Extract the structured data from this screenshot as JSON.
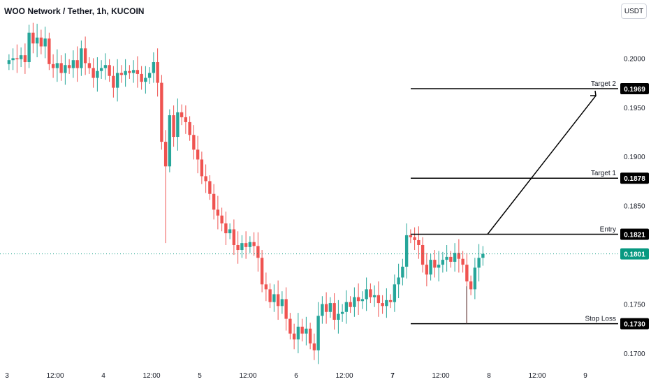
{
  "header": {
    "title": "WOO Network / Tether, 1h, KUCOIN",
    "currency": "USDT"
  },
  "colors": {
    "up": "#26a69a",
    "down": "#ef5350",
    "line": "#000000",
    "badge": "#000000",
    "last": "#089981"
  },
  "chart_data": {
    "type": "candlestick",
    "y_ticks": [
      "0.2000",
      "0.1950",
      "0.1900",
      "0.1850",
      "0.1750",
      "0.1700"
    ],
    "y_range": [
      0.169,
      0.2045
    ],
    "x_ticks": [
      "3",
      "12:00",
      "4",
      "12:00",
      "5",
      "12:00",
      "6",
      "12:00",
      "7",
      "12:00",
      "8",
      "12:00",
      "9"
    ],
    "bold_x_ticks": [
      "7"
    ],
    "closes": [
      0.1998,
      0.2,
      0.1999,
      0.2003,
      0.1996,
      0.2026,
      0.2015,
      0.2021,
      0.2012,
      0.202,
      0.1994,
      0.199,
      0.1995,
      0.1985,
      0.1993,
      0.199,
      0.1998,
      0.199,
      0.201,
      0.1995,
      0.199,
      0.198,
      0.1987,
      0.199,
      0.1993,
      0.1982,
      0.197,
      0.1985,
      0.1983,
      0.1987,
      0.1985,
      0.1988,
      0.1984,
      0.1976,
      0.198,
      0.1985,
      0.1996,
      0.1975,
      0.1915,
      0.189,
      0.1942,
      0.192,
      0.1945,
      0.194,
      0.1935,
      0.1922,
      0.1907,
      0.1897,
      0.188,
      0.1875,
      0.1862,
      0.1846,
      0.184,
      0.1832,
      0.1822,
      0.1826,
      0.181,
      0.1805,
      0.1812,
      0.1808,
      0.1813,
      0.1809,
      0.1797,
      0.177,
      0.1765,
      0.1752,
      0.176,
      0.1748,
      0.1755,
      0.1735,
      0.172,
      0.1714,
      0.1727,
      0.172,
      0.1725,
      0.171,
      0.1703,
      0.1738,
      0.175,
      0.1742,
      0.1751,
      0.1734,
      0.174,
      0.1742,
      0.1752,
      0.1747,
      0.1757,
      0.1753,
      0.1755,
      0.1765,
      0.1757,
      0.1759,
      0.1751,
      0.1748,
      0.1754,
      0.1752,
      0.177,
      0.1777,
      0.1788,
      0.182,
      0.1818,
      0.1815,
      0.181,
      0.179,
      0.178,
      0.1795,
      0.1787,
      0.179,
      0.1795,
      0.1798,
      0.1793,
      0.1802,
      0.1796,
      0.179,
      0.1773,
      0.1765,
      0.1787,
      0.1797,
      0.1801
    ],
    "lines": [
      {
        "label": "Target 2",
        "price": "0.1969"
      },
      {
        "label": "Target 1",
        "price": "0.1878"
      },
      {
        "label": "Entry",
        "price": "0.1821"
      },
      {
        "label": "Stop Loss",
        "price": "0.1730"
      }
    ],
    "last_price": "0.1801"
  }
}
